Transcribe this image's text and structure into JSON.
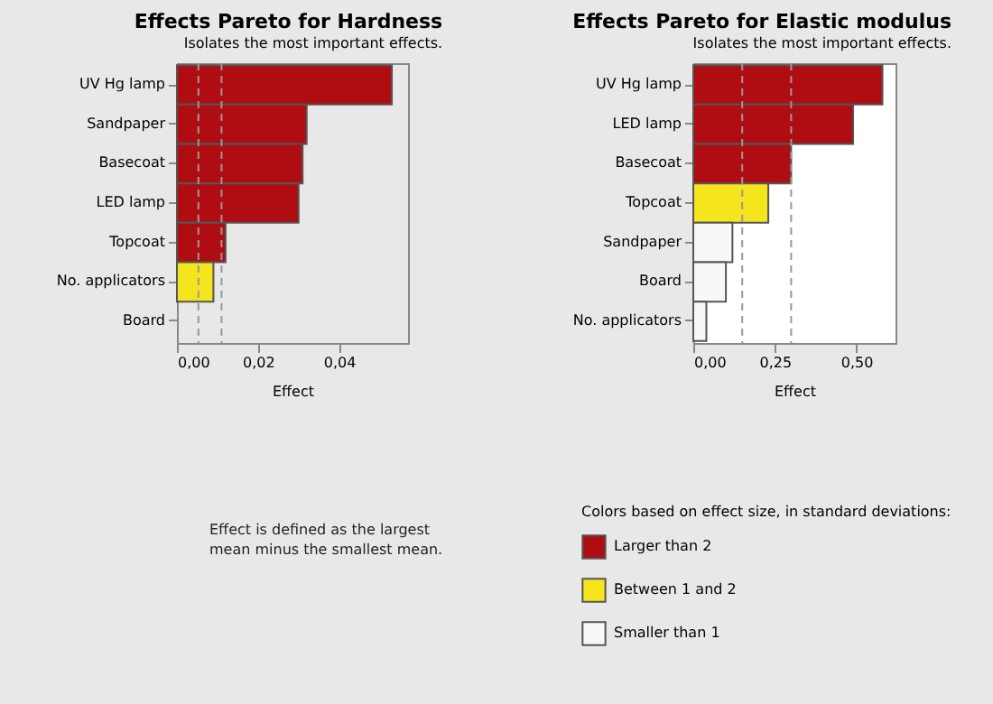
{
  "chart_data": [
    {
      "type": "bar",
      "orientation": "horizontal",
      "title": "Effects Pareto for Hardness",
      "subtitle": "Isolates the most important effects.",
      "xlabel": "Effect",
      "categories": [
        "UV Hg lamp",
        "Sandpaper",
        "Basecoat",
        "LED lamp",
        "Topcoat",
        "No. applicators",
        "Board"
      ],
      "values": [
        0.053,
        0.032,
        0.031,
        0.03,
        0.012,
        0.009,
        0
      ],
      "colors": [
        "#b00d12",
        "#b00d12",
        "#b00d12",
        "#b00d12",
        "#b00d12",
        "#f5e51c",
        "#f8f8f8"
      ],
      "xlim": [
        0,
        0.057
      ],
      "xticks": [
        {
          "value": 0,
          "label": "0,00"
        },
        {
          "value": 0.02,
          "label": "0,02"
        },
        {
          "value": 0.04,
          "label": "0,04"
        }
      ],
      "ref_lines": [
        {
          "axis": "x",
          "value": 0.0053,
          "color": "#999999",
          "line_style": "dashed"
        },
        {
          "axis": "x",
          "value": 0.011,
          "color": "#999999",
          "line_style": "dashed"
        }
      ],
      "annotations": [
        "Effect is defined as the largest",
        "mean minus the smallest mean."
      ],
      "grid": false
    },
    {
      "type": "bar",
      "orientation": "horizontal",
      "title": "Effects Pareto for Elastic modulus",
      "subtitle": "Isolates the most important effects.",
      "xlabel": "Effect",
      "legend_title": "Colors based on effect size, in standard deviations:",
      "categories": [
        "UV Hg lamp",
        "LED lamp",
        "Basecoat",
        "Topcoat",
        "Sandpaper",
        "Board",
        "No. applicators"
      ],
      "series": [
        {
          "name": "Larger than 2",
          "color": "#b00d12",
          "values": [
            0.58,
            0.49,
            0.3,
            null,
            null,
            null,
            null
          ]
        },
        {
          "name": "Between 1 and 2",
          "color": "#f5e51c",
          "values": [
            null,
            null,
            null,
            0.23,
            null,
            null,
            null
          ]
        },
        {
          "name": "Smaller than 1",
          "color": "#f8f8f8",
          "values": [
            null,
            null,
            null,
            null,
            0.12,
            0.1,
            0.04
          ]
        }
      ],
      "xlim": [
        0,
        0.62
      ],
      "xticks": [
        {
          "value": 0,
          "label": "0,00"
        },
        {
          "value": 0.25,
          "label": "0,25"
        },
        {
          "value": 0.5,
          "label": "0,50"
        }
      ],
      "ref_lines": [
        {
          "axis": "x",
          "value": 0.15,
          "color": "#999999",
          "line_style": "dashed"
        },
        {
          "axis": "x",
          "value": 0.3,
          "color": "#999999",
          "line_style": "dashed"
        }
      ],
      "grid": false,
      "legend": "bottom"
    }
  ]
}
